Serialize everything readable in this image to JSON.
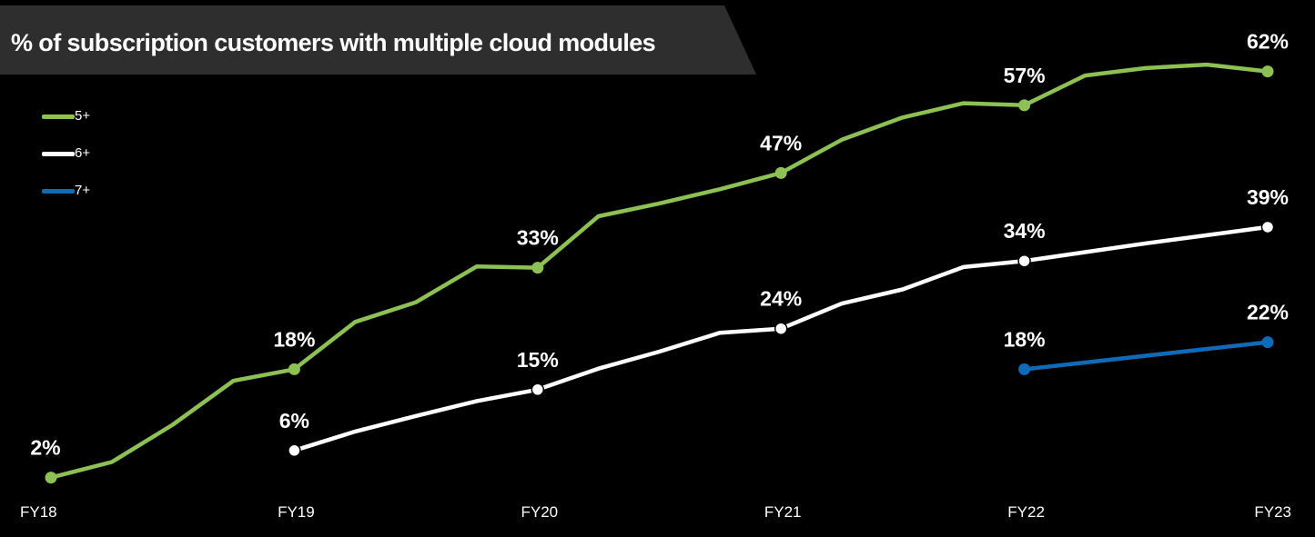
{
  "chart_data": {
    "type": "line",
    "title": "% of subscription customers with multiple cloud modules",
    "categories": [
      "FY18",
      "FY19",
      "FY20",
      "FY21",
      "FY22",
      "FY23"
    ],
    "legend_position": "top-left",
    "grid": false,
    "ylim": [
      0,
      70
    ],
    "series": [
      {
        "name": "5+",
        "color": "#8dc153",
        "labeled": [
          {
            "x": "FY18",
            "y": 2,
            "label": "2%"
          },
          {
            "x": "FY19",
            "y": 18,
            "label": "18%"
          },
          {
            "x": "FY20",
            "y": 33,
            "label": "33%"
          },
          {
            "x": "FY21",
            "y": 47,
            "label": "47%"
          },
          {
            "x": "FY22",
            "y": 57,
            "label": "57%"
          },
          {
            "x": "FY23",
            "y": 62,
            "label": "62%"
          }
        ],
        "trend": [
          [
            0,
            2
          ],
          [
            0.25,
            4.3
          ],
          [
            0.5,
            9.8
          ],
          [
            0.75,
            16.3
          ],
          [
            1,
            18
          ],
          [
            1.25,
            25
          ],
          [
            1.5,
            27.9
          ],
          [
            1.75,
            33.2
          ],
          [
            2,
            33
          ],
          [
            2.25,
            40.6
          ],
          [
            2.5,
            42.5
          ],
          [
            2.75,
            44.6
          ],
          [
            3,
            47
          ],
          [
            3.25,
            51.9
          ],
          [
            3.5,
            55.2
          ],
          [
            3.75,
            57.3
          ],
          [
            4,
            57
          ],
          [
            4.25,
            61.4
          ],
          [
            4.5,
            62.5
          ],
          [
            4.75,
            63
          ],
          [
            5,
            62
          ]
        ]
      },
      {
        "name": "6+",
        "color": "#ffffff",
        "labeled": [
          {
            "x": "FY19",
            "y": 6,
            "label": "6%"
          },
          {
            "x": "FY20",
            "y": 15,
            "label": "15%"
          },
          {
            "x": "FY21",
            "y": 24,
            "label": "24%"
          },
          {
            "x": "FY22",
            "y": 34,
            "label": "34%"
          },
          {
            "x": "FY23",
            "y": 39,
            "label": "39%"
          }
        ],
        "trend": [
          [
            1,
            6
          ],
          [
            1.25,
            8.8
          ],
          [
            1.5,
            11.1
          ],
          [
            1.75,
            13.3
          ],
          [
            2,
            15
          ],
          [
            2.25,
            18.1
          ],
          [
            2.5,
            20.6
          ],
          [
            2.75,
            23.4
          ],
          [
            3,
            24
          ],
          [
            3.25,
            27.7
          ],
          [
            3.5,
            29.8
          ],
          [
            3.75,
            33.1
          ],
          [
            4,
            34
          ],
          [
            4.25,
            35.3
          ],
          [
            4.5,
            36.6
          ],
          [
            4.75,
            37.8
          ],
          [
            5,
            39
          ]
        ]
      },
      {
        "name": "7+",
        "color": "#0f6ab8",
        "labeled": [
          {
            "x": "FY22",
            "y": 18,
            "label": "18%"
          },
          {
            "x": "FY23",
            "y": 22,
            "label": "22%"
          }
        ],
        "trend": [
          [
            4,
            18
          ],
          [
            5,
            22
          ]
        ]
      }
    ]
  }
}
